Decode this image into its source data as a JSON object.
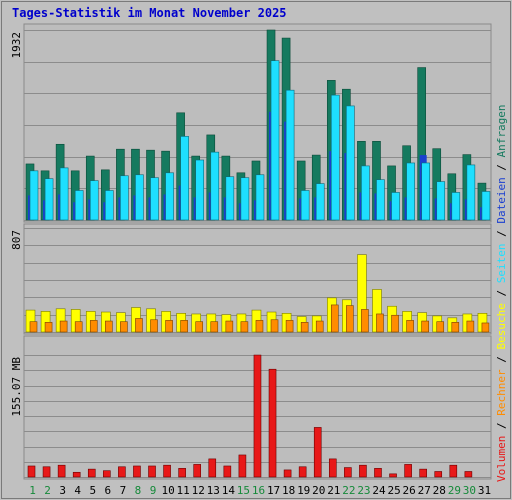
{
  "title": "Tages-Statistik im Monat November 2025",
  "chart_data": {
    "type": "bar",
    "x": [
      "1",
      "2",
      "3",
      "4",
      "5",
      "6",
      "7",
      "8",
      "9",
      "10",
      "11",
      "12",
      "13",
      "14",
      "15",
      "16",
      "17",
      "18",
      "19",
      "20",
      "21",
      "22",
      "23",
      "24",
      "25",
      "26",
      "27",
      "28",
      "29",
      "30",
      "31"
    ],
    "weekend_days": [
      "1",
      "2",
      "8",
      "9",
      "15",
      "16",
      "22",
      "23",
      "29",
      "30"
    ],
    "colors": {
      "anfragen": "#157a5f",
      "dateien": "#1a3fd0",
      "seiten": "#1edfff",
      "besuche": "#ffff00",
      "rechner": "#ff8c00",
      "volumen": "#e81818",
      "weekday_label": "#000000",
      "weekend_label": "#168a3a"
    },
    "panels": [
      {
        "id": "requests",
        "ymax_label": "1932",
        "ylim": [
          0,
          1932
        ],
        "series": [
          {
            "name": "Anfragen",
            "values": [
              570,
              500,
              770,
              500,
              650,
              510,
              720,
              720,
              710,
              700,
              1090,
              650,
              865,
              650,
              480,
              600,
              1932,
              1850,
              600,
              660,
              1420,
              1330,
              800,
              800,
              550,
              755,
              1550,
              725,
              470,
              665,
              375
            ]
          },
          {
            "name": "Dateien",
            "values": [
              250,
              200,
              260,
              180,
              210,
              180,
              230,
              250,
              230,
              260,
              350,
              230,
              280,
              230,
              170,
              200,
              1100,
              1000,
              220,
              230,
              700,
              680,
              280,
              270,
              190,
              230,
              660,
              220,
              170,
              210,
              130
            ]
          },
          {
            "name": "Seiten",
            "values": [
              500,
              420,
              530,
              300,
              400,
              300,
              450,
              460,
              430,
              480,
              850,
              610,
              690,
              440,
              430,
              460,
              1620,
              1320,
              300,
              370,
              1270,
              1160,
              550,
              410,
              280,
              580,
              580,
              390,
              280,
              560,
              290
            ]
          }
        ]
      },
      {
        "id": "visits",
        "ymax_label": "807",
        "ylim": [
          0,
          807
        ],
        "series": [
          {
            "name": "Besuche",
            "values": [
              170,
              160,
              180,
              175,
              160,
              155,
              150,
              190,
              180,
              160,
              145,
              140,
              140,
              135,
              140,
              170,
              155,
              145,
              120,
              125,
              265,
              250,
              600,
              330,
              200,
              160,
              150,
              125,
              110,
              140,
              145
            ]
          },
          {
            "name": "Rechner",
            "values": [
              80,
              75,
              85,
              80,
              90,
              85,
              80,
              105,
              95,
              90,
              90,
              80,
              80,
              85,
              80,
              90,
              95,
              90,
              75,
              85,
              210,
              205,
              175,
              140,
              130,
              90,
              85,
              80,
              75,
              85,
              70
            ]
          }
        ]
      },
      {
        "id": "volume",
        "ymax_label": "155.07 MB",
        "ylim": [
          0,
          155.07
        ],
        "series": [
          {
            "name": "Volumen",
            "values": [
              14,
              13,
              15,
              6,
              10,
              8,
              13,
              14,
              14,
              15,
              11,
              16,
              23,
              14,
              28,
              155,
              137,
              9,
              13,
              63,
              23,
              12,
              15,
              11,
              4,
              16,
              10,
              7,
              15,
              7,
              0
            ]
          }
        ]
      }
    ],
    "legend_text": [
      "Volumen",
      " / ",
      "Rechner",
      " / ",
      "Besuche",
      " / ",
      "Seiten",
      " / ",
      "Dateien",
      " / ",
      "Anfragen"
    ],
    "grid": true
  }
}
